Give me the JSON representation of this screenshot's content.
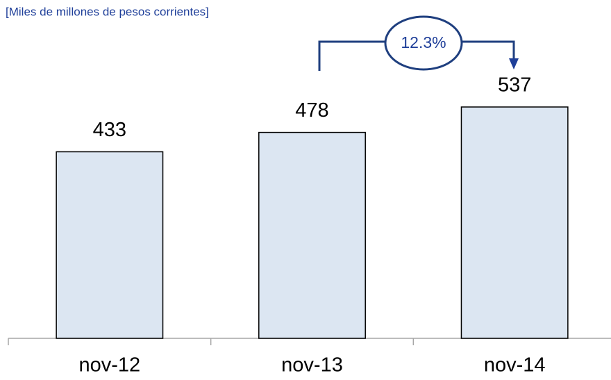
{
  "chart_data": {
    "type": "bar",
    "subtitle": "[Miles de millones de pesos corrientes]",
    "categories": [
      "nov-12",
      "nov-13",
      "nov-14"
    ],
    "values": [
      433,
      478,
      537
    ],
    "color": "#dce6f2",
    "annotation": "12.3%"
  }
}
